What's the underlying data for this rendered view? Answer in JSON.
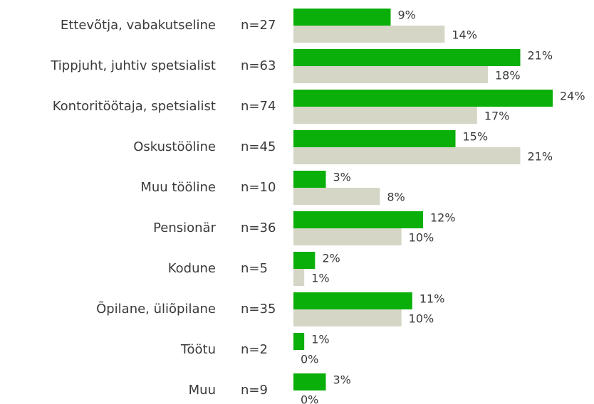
{
  "chart_data": {
    "type": "hbar",
    "categories": [
      "Ettevõtja, vabakutseline",
      "Tippjuht, juhtiv spetsialist",
      "Kontoritöötaja, spetsialist",
      "Oskustööline",
      "Muu tööline",
      "Pensionär",
      "Kodune",
      "Õpilane, üliõpilane",
      "Töötu",
      "Muu"
    ],
    "n_labels": [
      "n=27",
      "n=63",
      "n=74",
      "n=45",
      "n=10",
      "n=36",
      "n=5",
      "n=35",
      "n=2",
      "n=9"
    ],
    "xlim": [
      0,
      24
    ],
    "series": [
      {
        "color": "#0aaf0a",
        "values": [
          9,
          21,
          24,
          15,
          3,
          12,
          2,
          11,
          1,
          3
        ],
        "value_labels": [
          "9%",
          "21%",
          "24%",
          "15%",
          "3%",
          "12%",
          "2%",
          "11%",
          "1%",
          "3%"
        ]
      },
      {
        "color": "#d6d6c6",
        "values": [
          14,
          18,
          17,
          21,
          8,
          10,
          1,
          10,
          0,
          0
        ],
        "value_labels": [
          "14%",
          "18%",
          "17%",
          "21%",
          "8%",
          "10%",
          "1%",
          "10%",
          "0%",
          "0%"
        ]
      }
    ]
  }
}
